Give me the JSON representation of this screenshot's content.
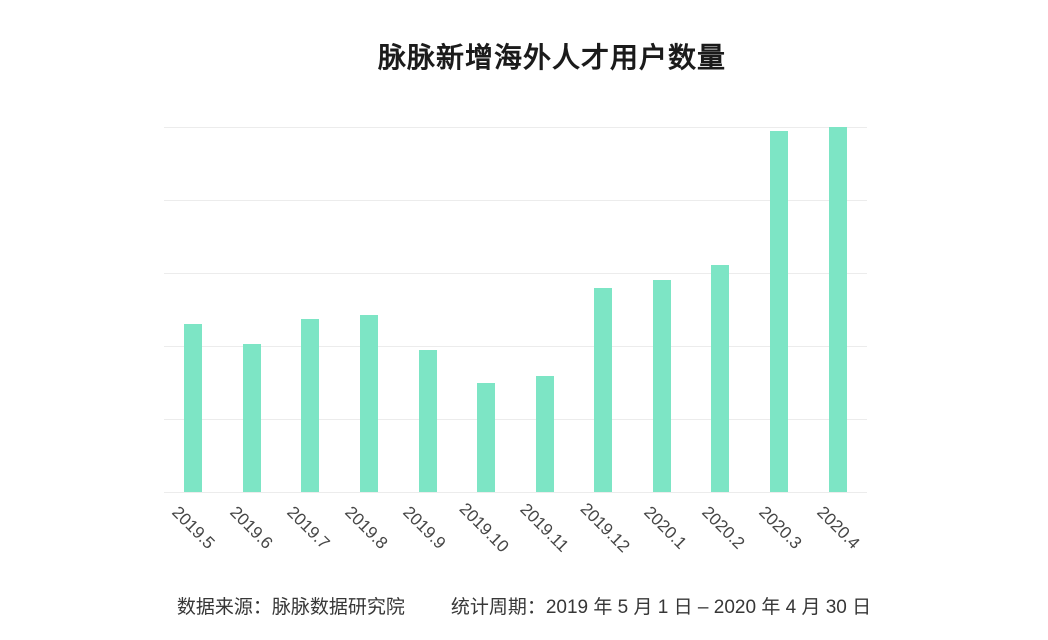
{
  "chart_data": {
    "type": "bar",
    "title": "脉脉新增海外人才用户数量",
    "categories": [
      "2019.5",
      "2019.6",
      "2019.7",
      "2019.8",
      "2019.9",
      "2019.10",
      "2019.11",
      "2019.12",
      "2020.1",
      "2020.2",
      "2020.3",
      "2020.4"
    ],
    "values": [
      46.1,
      40.5,
      47.3,
      48.5,
      38.8,
      30.0,
      31.8,
      55.9,
      58.2,
      62.2,
      98.8,
      100.0
    ],
    "value_note": "no numeric y-axis labels shown; values estimated relative to top gridline = 100",
    "xlabel": "",
    "ylabel": "",
    "ylim": [
      0,
      100
    ],
    "gridline_values": [
      0,
      20,
      40,
      60,
      80,
      100
    ],
    "grid": "horizontal only",
    "legend": "none",
    "bar_color": "#7de5c5",
    "gridline_color": "#ececec",
    "label_color": "#454545",
    "title_color": "#1b1b1b"
  },
  "footer": {
    "source": "数据来源：脉脉数据研究院",
    "period": "统计周期：2019 年 5 月 1 日 – 2020 年 4 月 30 日"
  }
}
